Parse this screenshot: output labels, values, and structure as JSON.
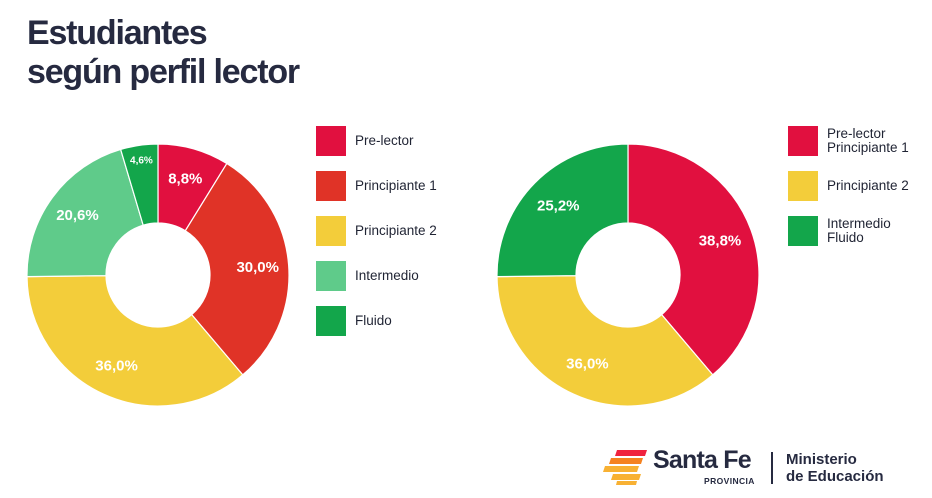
{
  "title": {
    "line1": "Estudiantes",
    "line2": "según perfil lector"
  },
  "chart_data": [
    {
      "type": "pie",
      "donut": true,
      "categories": [
        "Pre-lector",
        "Principiante 1",
        "Principiante 2",
        "Intermedio",
        "Fluido"
      ],
      "values": [
        8.8,
        30.0,
        36.0,
        20.6,
        4.6
      ],
      "value_labels": [
        "8,8%",
        "30,0%",
        "36,0%",
        "20,6%",
        "4,6%"
      ],
      "colors": [
        "#e1103f",
        "#e03327",
        "#f3cd3a",
        "#5fcb8a",
        "#13a64b"
      ],
      "legend": [
        {
          "label": "Pre-lector",
          "color": "#e1103f"
        },
        {
          "label": "Principiante 1",
          "color": "#e03327"
        },
        {
          "label": "Principiante 2",
          "color": "#f3cd3a"
        },
        {
          "label": "Intermedio",
          "color": "#5fcb8a"
        },
        {
          "label": "Fluido",
          "color": "#13a64b"
        }
      ],
      "legend_position": "right"
    },
    {
      "type": "pie",
      "donut": true,
      "categories": [
        "Pre-lector Principiante 1",
        "Principiante 2",
        "Intermedio Fluido"
      ],
      "values": [
        38.8,
        36.0,
        25.2
      ],
      "value_labels": [
        "38,8%",
        "36,0%",
        "25,2%"
      ],
      "colors": [
        "#e1103f",
        "#f3cd3a",
        "#13a64b"
      ],
      "legend": [
        {
          "label": "Pre-lector Principiante 1",
          "color": "#e1103f"
        },
        {
          "label": "Principiante 2",
          "color": "#f3cd3a"
        },
        {
          "label": "Intermedio Fluido",
          "color": "#13a64b"
        }
      ],
      "legend_position": "right"
    }
  ],
  "footer": {
    "brand": "Santa Fe",
    "brand_sub": "PROVINCIA",
    "ministry_line1": "Ministerio",
    "ministry_line2": "de Educación",
    "logo_colors": [
      "#f0233f",
      "#f58220",
      "#f8b133"
    ]
  }
}
